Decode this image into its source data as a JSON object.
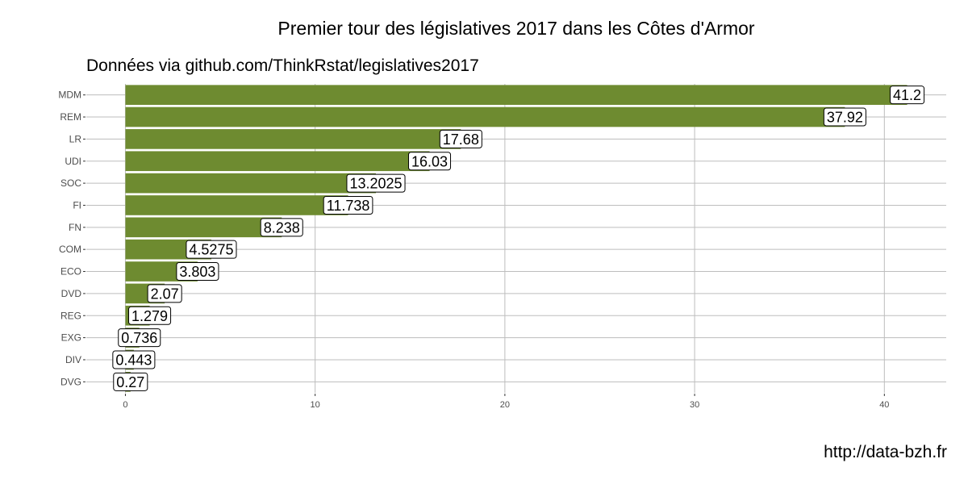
{
  "chart_data": {
    "type": "bar",
    "orientation": "horizontal",
    "title": "Premier tour des législatives 2017 dans les Côtes d'Armor",
    "subtitle": "Données via github.com/ThinkRstat/legislatives2017",
    "caption": "http://data-bzh.fr",
    "xlabel": "",
    "ylabel": "",
    "categories": [
      "MDM",
      "REM",
      "LR",
      "UDI",
      "SOC",
      "FI",
      "FN",
      "COM",
      "ECO",
      "DVD",
      "REG",
      "EXG",
      "DIV",
      "DVG"
    ],
    "values": [
      41.2,
      37.92,
      17.68,
      16.03,
      13.2025,
      11.738,
      8.238,
      4.5275,
      3.803,
      2.07,
      1.279,
      0.736,
      0.443,
      0.27
    ],
    "data_labels": [
      "41.2",
      "37.92",
      "17.68",
      "16.03",
      "13.2025",
      "11.738",
      "8.238",
      "4.5275",
      "3.803",
      "2.07",
      "1.279",
      "0.736",
      "0.443",
      "0.27"
    ],
    "x_ticks": [
      0,
      10,
      20,
      30,
      40
    ],
    "xlim": [
      -2.06,
      43.26
    ],
    "grid": true,
    "legend": "none",
    "bar_color": "#6e8b30"
  }
}
